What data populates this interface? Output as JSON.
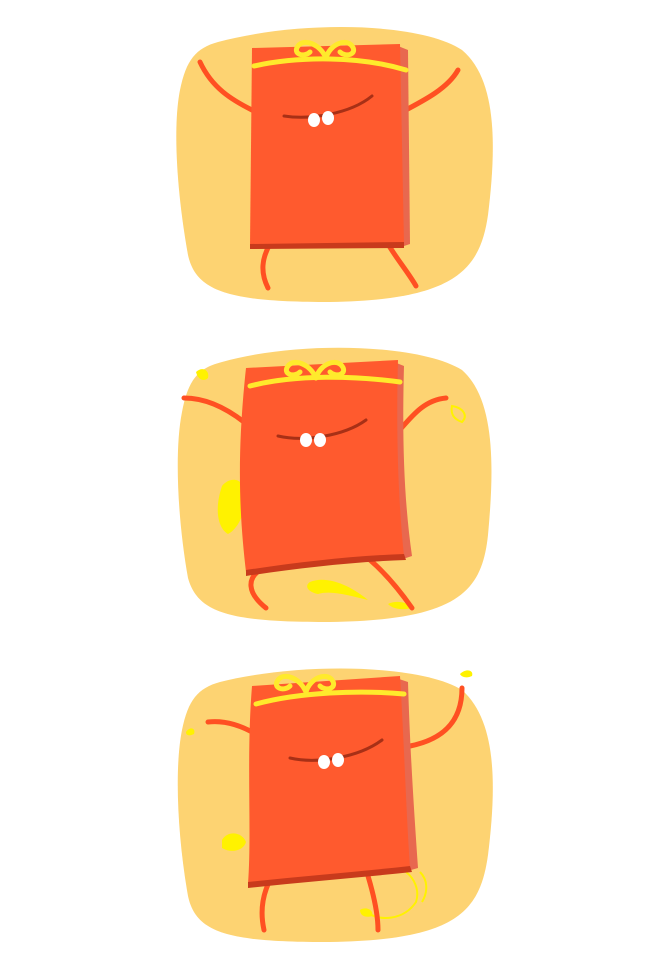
{
  "colors": {
    "background": "#ffffff",
    "blob": "#FDD372",
    "envelope": "#FF5A2E",
    "envelope_shadow": "#E8684F",
    "envelope_edge": "#C83A1C",
    "limbs": "#FF5022",
    "ribbon": "#FFEA2C",
    "sparkle": "#FFF200",
    "teeth": "#FFFFFF",
    "mouth": "#A83016"
  },
  "frames": [
    {
      "pose": "arms-up",
      "icon": "red-envelope-character-icon"
    },
    {
      "pose": "dancing-with-sparkles",
      "icon": "red-envelope-character-icon"
    },
    {
      "pose": "waving-with-sparkles",
      "icon": "red-envelope-character-icon"
    }
  ]
}
